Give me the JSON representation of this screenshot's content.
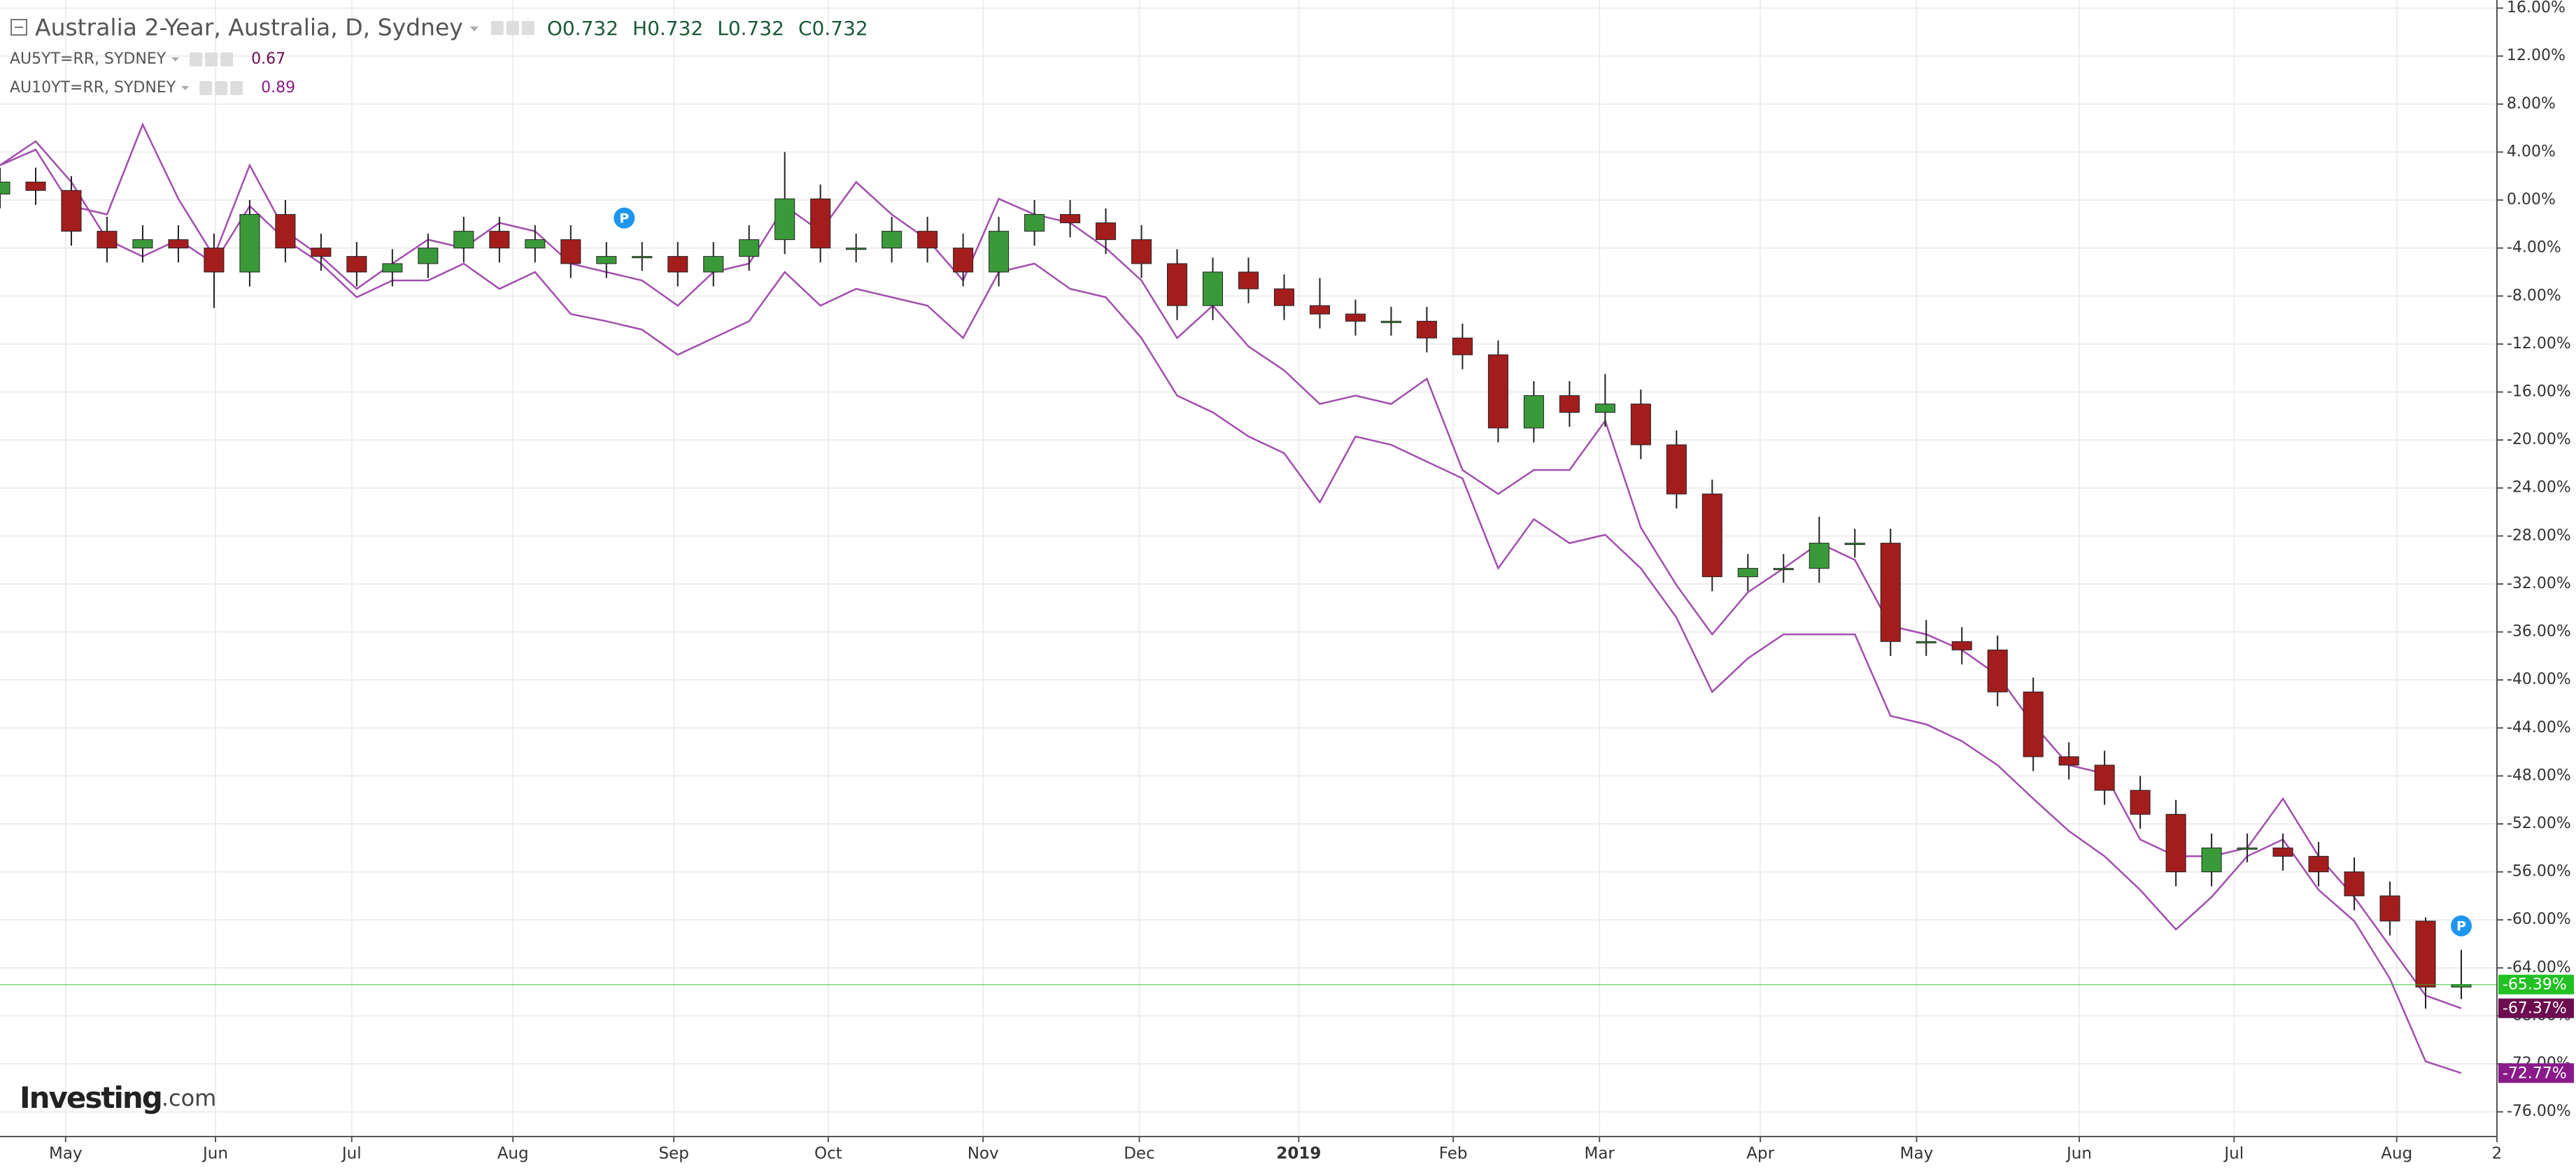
{
  "chart_data": {
    "type": "candlestick",
    "title": "Australia 2-Year, Australia, D, Sydney",
    "ohlc": [
      "O0.732",
      "H0.732",
      "L0.732",
      "C0.732"
    ],
    "logo": [
      "Investing",
      ".com"
    ],
    "up_color": "#3a9a3a",
    "down_color": "#a31d1d",
    "x": [
      0,
      1,
      2,
      3,
      4,
      5,
      6,
      7,
      8,
      9,
      10,
      11,
      12,
      13,
      14,
      15,
      16,
      17,
      18,
      19,
      20,
      21,
      22,
      23,
      24,
      25,
      26,
      27,
      28,
      29,
      30,
      31,
      32,
      33,
      34,
      35,
      36,
      37,
      38,
      39,
      40,
      41,
      42,
      43,
      44,
      45,
      46,
      47,
      48,
      49,
      50,
      51,
      52,
      53,
      54,
      55,
      56,
      57,
      58,
      59,
      60,
      61,
      62,
      63,
      64,
      65,
      66,
      67,
      68,
      69
    ],
    "open": [
      0.5,
      1.5,
      0.8,
      -2.6,
      -4,
      -3.3,
      -4,
      -6,
      -1.2,
      -4,
      -4.7,
      -6,
      -5.3,
      -4,
      -2.6,
      -4,
      -3.3,
      -5.3,
      -4.7,
      -4.7,
      -6,
      -4.7,
      -3.3,
      0.1,
      -4,
      -4,
      -2.6,
      -4,
      -6,
      -2.6,
      -1.2,
      -1.9,
      -3.3,
      -5.3,
      -8.8,
      -6,
      -7.4,
      -8.8,
      -9.5,
      -10.1,
      -10.1,
      -11.5,
      -12.9,
      -19,
      -16.3,
      -17.7,
      -17,
      -20.4,
      -24.5,
      -31.4,
      -30.7,
      -30.7,
      -28.6,
      -28.6,
      -36.8,
      -36.8,
      -37.5,
      -41,
      -46.4,
      -47.1,
      -49.2,
      -51.2,
      -56,
      -54,
      -54,
      -54.7,
      -56,
      -58,
      -60.1,
      -65.6
    ],
    "high": [
      2.7,
      2.7,
      2.0,
      -1.4,
      -2.1,
      -2.1,
      -2.8,
      0.0,
      0.0,
      -2.8,
      -3.5,
      -4.1,
      -2.8,
      -1.4,
      -1.4,
      -2.1,
      -2.1,
      -3.5,
      -3.5,
      -3.5,
      -3.5,
      -2.1,
      4.0,
      1.3,
      -2.8,
      -1.4,
      -1.4,
      -2.8,
      -1.4,
      0.0,
      0.0,
      -0.7,
      -2.1,
      -4.1,
      -4.8,
      -4.8,
      -6.2,
      -6.5,
      -8.3,
      -8.9,
      -8.9,
      -10.3,
      -11.7,
      -15.1,
      -15.1,
      -14.5,
      -15.8,
      -19.2,
      -23.3,
      -29.5,
      -29.5,
      -26.4,
      -27.4,
      -27.4,
      -35.0,
      -35.6,
      -36.3,
      -39.8,
      -45.2,
      -45.9,
      -48.0,
      -50.0,
      -52.8,
      -52.8,
      -52.8,
      -53.5,
      -54.8,
      -56.8,
      -59.8,
      -62.5
    ],
    "low": [
      -0.7,
      -0.4,
      -3.8,
      -5.2,
      -5.2,
      -5.2,
      -9.0,
      -7.2,
      -5.2,
      -5.9,
      -7.2,
      -7.2,
      -6.5,
      -5.2,
      -5.2,
      -5.2,
      -6.5,
      -6.5,
      -5.9,
      -7.2,
      -7.2,
      -5.9,
      -4.5,
      -5.2,
      -5.2,
      -5.2,
      -5.2,
      -7.2,
      -7.2,
      -3.8,
      -3.1,
      -4.5,
      -6.5,
      -10.0,
      -10.0,
      -8.6,
      -10.0,
      -10.7,
      -11.3,
      -11.3,
      -12.7,
      -14.1,
      -20.2,
      -20.2,
      -18.9,
      -18.9,
      -21.6,
      -25.7,
      -32.6,
      -32.6,
      -31.9,
      -31.9,
      -29.8,
      -38.0,
      -38.0,
      -38.7,
      -42.2,
      -47.6,
      -48.3,
      -50.4,
      -52.4,
      -57.2,
      -57.2,
      -55.2,
      -55.9,
      -57.2,
      -59.2,
      -61.3,
      -67.4,
      -66.6
    ],
    "close": [
      1.5,
      0.8,
      -2.6,
      -4,
      -3.3,
      -4,
      -6,
      -1.2,
      -4,
      -4.7,
      -6,
      -5.3,
      -4,
      -2.6,
      -4,
      -3.3,
      -5.3,
      -4.7,
      -4.7,
      -6,
      -4.7,
      -3.3,
      0.1,
      -4,
      -4,
      -2.6,
      -4,
      -6,
      -2.6,
      -1.2,
      -1.9,
      -3.3,
      -5.3,
      -8.8,
      -6,
      -7.4,
      -8.8,
      -9.5,
      -10.1,
      -10.1,
      -11.5,
      -12.9,
      -19,
      -16.3,
      -17.7,
      -17,
      -20.4,
      -24.5,
      -31.4,
      -30.7,
      -30.7,
      -28.6,
      -28.6,
      -36.8,
      -36.8,
      -37.5,
      -41,
      -46.4,
      -47.1,
      -49.2,
      -51.2,
      -56,
      -54,
      -54,
      -54.7,
      -56,
      -58,
      -60.1,
      -65.6,
      -65.39
    ],
    "last_label": "-65.39%",
    "last_color": "#22c022",
    "series": [
      {
        "name": "AU5YT=RR, SYDNEY",
        "legend_value": 0.67,
        "color": "#a24fae",
        "label_color": "#6b0d4f",
        "last_label": "-67.37%",
        "values": [
          2.9,
          4.2,
          -0.5,
          -1.2,
          6.3,
          0.1,
          -4.7,
          2.9,
          -2.6,
          -4.7,
          -7.4,
          -5.3,
          -3.3,
          -4,
          -1.9,
          -2.6,
          -5.3,
          -6,
          -6.7,
          -8.8,
          -6,
          -5.3,
          -0.5,
          -2.6,
          1.5,
          -1.2,
          -3.3,
          -6.7,
          0.1,
          -1.2,
          -1.9,
          -4,
          -6.7,
          -11.5,
          -8.8,
          -12.2,
          -14.2,
          -17,
          -16.3,
          -17,
          -14.9,
          -22.5,
          -24.5,
          -22.5,
          -22.5,
          -18.4,
          -27.3,
          -32.1,
          -36.2,
          -32.7,
          -30.7,
          -28.6,
          -30,
          -35.5,
          -36.2,
          -37.5,
          -39.6,
          -43.7,
          -47.1,
          -47.8,
          -53.3,
          -54.7,
          -54.7,
          -54,
          -49.9,
          -54.7,
          -58.1,
          -62.2,
          -66.3,
          -67.37
        ]
      },
      {
        "name": "AU10YT=RR, SYDNEY",
        "legend_value": 0.89,
        "color": "#a24fae",
        "label_color": "#8a1a8a",
        "last_label": "-72.77%",
        "values": [
          2.9,
          4.9,
          1.5,
          -3.3,
          -4.7,
          -3.3,
          -5.3,
          -0.5,
          -3.3,
          -5.3,
          -8.1,
          -6.7,
          -6.7,
          -5.3,
          -7.4,
          -6,
          -9.5,
          -10.1,
          -10.8,
          -12.9,
          -11.5,
          -10.1,
          -6,
          -8.8,
          -7.4,
          -8.1,
          -8.8,
          -11.5,
          -6,
          -5.3,
          -7.4,
          -8.1,
          -11.5,
          -16.3,
          -17.7,
          -19.7,
          -21.1,
          -25.2,
          -19.7,
          -20.4,
          -21.8,
          -23.2,
          -30.7,
          -26.6,
          -28.6,
          -27.9,
          -30.7,
          -34.8,
          -41,
          -38.2,
          -36.2,
          -36.2,
          -36.2,
          -43,
          -43.7,
          -45.1,
          -47.1,
          -49.9,
          -52.6,
          -54.7,
          -57.5,
          -60.8,
          -58.1,
          -54.7,
          -53.3,
          -57.5,
          -60.1,
          -64.9,
          -71.8,
          -72.77
        ]
      }
    ],
    "markers": [
      {
        "x": 17.5,
        "y": -1.5,
        "label": "P"
      },
      {
        "x": 69,
        "y": -60.5,
        "label": "P"
      }
    ],
    "xlim": [
      0,
      70
    ],
    "ylim": [
      -78,
      16.5
    ],
    "xticks": [
      {
        "value": 1.84,
        "label": "May"
      },
      {
        "value": 6.04,
        "label": "Jun"
      },
      {
        "value": 9.86,
        "label": "Jul"
      },
      {
        "value": 14.38,
        "label": "Aug"
      },
      {
        "value": 18.89,
        "label": "Sep"
      },
      {
        "value": 23.22,
        "label": "Oct"
      },
      {
        "value": 27.56,
        "label": "Nov"
      },
      {
        "value": 31.94,
        "label": "Dec"
      },
      {
        "value": 36.41,
        "label": "2019"
      },
      {
        "value": 40.74,
        "label": "Feb"
      },
      {
        "value": 44.84,
        "label": "Mar"
      },
      {
        "value": 49.35,
        "label": "Apr"
      },
      {
        "value": 53.73,
        "label": "May"
      },
      {
        "value": 58.29,
        "label": "Jun"
      },
      {
        "value": 62.63,
        "label": "Jul"
      },
      {
        "value": 67.19,
        "label": "Aug"
      },
      {
        "value": 70,
        "label": "2"
      }
    ],
    "yticks": [
      {
        "value": 16,
        "label": "16.00%"
      },
      {
        "value": 12,
        "label": "12.00%"
      },
      {
        "value": 8,
        "label": "8.00%"
      },
      {
        "value": 4,
        "label": "4.00%"
      },
      {
        "value": 0,
        "label": "0.00%"
      },
      {
        "value": -4,
        "label": "-4.00%"
      },
      {
        "value": -8,
        "label": "-8.00%"
      },
      {
        "value": -12,
        "label": "-12.00%"
      },
      {
        "value": -16,
        "label": "-16.00%"
      },
      {
        "value": -20,
        "label": "-20.00%"
      },
      {
        "value": -24,
        "label": "-24.00%"
      },
      {
        "value": -28,
        "label": "-28.00%"
      },
      {
        "value": -32,
        "label": "-32.00%"
      },
      {
        "value": -36,
        "label": "-36.00%"
      },
      {
        "value": -40,
        "label": "-40.00%"
      },
      {
        "value": -44,
        "label": "-44.00%"
      },
      {
        "value": -48,
        "label": "-48.00%"
      },
      {
        "value": -52,
        "label": "-52.00%"
      },
      {
        "value": -56,
        "label": "-56.00%"
      },
      {
        "value": -60,
        "label": "-60.00%"
      },
      {
        "value": -64,
        "label": "-64.00%"
      },
      {
        "value": -68,
        "label": "-68.00%"
      },
      {
        "value": -72,
        "label": "-72.00%"
      },
      {
        "value": -76,
        "label": "-76.00%"
      }
    ],
    "grid": true
  }
}
